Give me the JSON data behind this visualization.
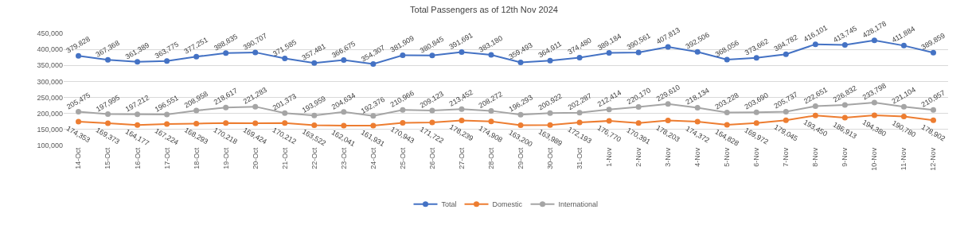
{
  "chart_data": {
    "type": "line",
    "title": "Total Passengers as of 12th Nov 2024",
    "categories": [
      "14-Oct",
      "15-Oct",
      "16-Oct",
      "17-Oct",
      "18-Oct",
      "19-Oct",
      "20-Oct",
      "21-Oct",
      "22-Oct",
      "23-Oct",
      "24-Oct",
      "25-Oct",
      "26-Oct",
      "27-Oct",
      "28-Oct",
      "29-Oct",
      "30-Oct",
      "31-Oct",
      "1-Nov",
      "2-Nov",
      "3-Nov",
      "4-Nov",
      "5-Nov",
      "6-Nov",
      "7-Nov",
      "8-Nov",
      "9-Nov",
      "10-Nov",
      "11-Nov",
      "12-Nov"
    ],
    "series": [
      {
        "name": "Total",
        "color": "#4472c4",
        "values": [
          379828,
          367368,
          361389,
          363775,
          377251,
          388835,
          390707,
          371585,
          357481,
          366675,
          354307,
          381909,
          380845,
          391691,
          383180,
          359493,
          364911,
          374480,
          389184,
          390561,
          407813,
          392506,
          368056,
          373662,
          384782,
          416101,
          413745,
          428178,
          411884,
          389859
        ],
        "value_labels": [
          "379,828",
          "367,368",
          "361,389",
          "363,775",
          "377,251",
          "388,835",
          "390,707",
          "371,585",
          "357,481",
          "366,675",
          "354,307",
          "381,909",
          "380,845",
          "391,691",
          "383,180",
          "359,493",
          "364,911",
          "374,480",
          "389,184",
          "390,561",
          "407,813",
          "392,506",
          "368,056",
          "373,662",
          "384,782",
          "416,101",
          "413,745",
          "428,178",
          "411,884",
          "389,859"
        ]
      },
      {
        "name": "Domestic",
        "color": "#ed7d31",
        "values": [
          174353,
          169373,
          164177,
          167224,
          168293,
          170218,
          169424,
          170212,
          163522,
          162041,
          161931,
          170943,
          171722,
          178239,
          174908,
          163200,
          163989,
          172193,
          176770,
          170391,
          178203,
          174372,
          164828,
          169972,
          179045,
          193450,
          186913,
          194380,
          190780,
          178902
        ],
        "value_labels": [
          "174,353",
          "169,373",
          "164,177",
          "167,224",
          "168,293",
          "170,218",
          "169,424",
          "170,212",
          "163,522",
          "162,041",
          "161,931",
          "170,943",
          "171,722",
          "178,239",
          "174,908",
          "163,200",
          "163,989",
          "172,193",
          "176,770",
          "170,391",
          "178,203",
          "174,372",
          "164,828",
          "169,972",
          "179,045",
          "193,450",
          "186,913",
          "194,380",
          "190,780",
          "178,902"
        ]
      },
      {
        "name": "International",
        "color": "#a5a5a5",
        "values": [
          205475,
          197995,
          197212,
          196551,
          208958,
          218617,
          221283,
          201373,
          193959,
          204634,
          192376,
          210966,
          209123,
          213452,
          208272,
          196293,
          200922,
          202287,
          212414,
          220170,
          229610,
          218134,
          203228,
          203690,
          205737,
          222651,
          226832,
          233798,
          221104,
          210957
        ],
        "value_labels": [
          "205,475",
          "197,995",
          "197,212",
          "196,551",
          "208,958",
          "218,617",
          "221,283",
          "201,373",
          "193,959",
          "204,634",
          "192,376",
          "210,966",
          "209,123",
          "213,452",
          "208,272",
          "196,293",
          "200,922",
          "202,287",
          "212,414",
          "220,170",
          "229,610",
          "218,134",
          "203,228",
          "203,690",
          "205,737",
          "222,651",
          "226,832",
          "233,798",
          "221,104",
          "210,957"
        ]
      }
    ],
    "ylim": [
      100000,
      450000
    ],
    "yticks": [
      {
        "value": 100000,
        "label": "100,000"
      },
      {
        "value": 150000,
        "label": "150,000"
      },
      {
        "value": 200000,
        "label": "200,000"
      },
      {
        "value": 250000,
        "label": "250,000"
      },
      {
        "value": 300000,
        "label": "300,000"
      },
      {
        "value": 350000,
        "label": "350,000"
      },
      {
        "value": 400000,
        "label": "400,000"
      },
      {
        "value": 450000,
        "label": "450,000"
      }
    ],
    "grid": "y",
    "legend": "bottom",
    "marker": "circle",
    "line_style": "solid"
  }
}
